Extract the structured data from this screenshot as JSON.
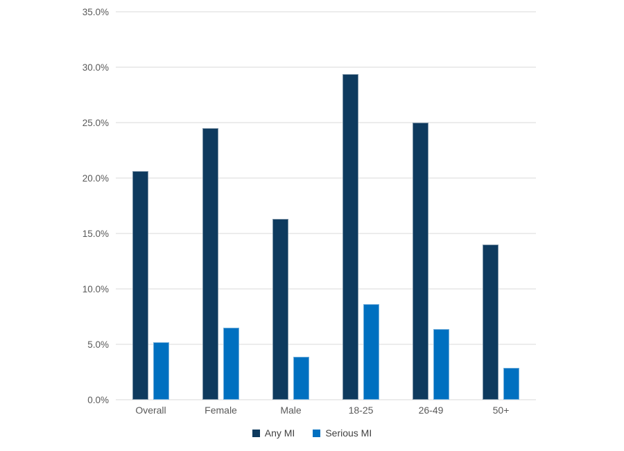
{
  "chart_data": {
    "type": "bar",
    "title": "",
    "xlabel": "",
    "ylabel": "",
    "categories": [
      "Overall",
      "Female",
      "Male",
      "18-25",
      "26-49",
      "50+"
    ],
    "series": [
      {
        "name": "Any MI",
        "color": "#0E3A5E",
        "values": [
          20.6,
          24.5,
          16.3,
          29.4,
          25.0,
          14.0
        ]
      },
      {
        "name": "Serious MI",
        "color": "#0070C0",
        "values": [
          5.2,
          6.5,
          3.9,
          8.6,
          6.4,
          2.9
        ]
      }
    ],
    "ylim": [
      0,
      35
    ],
    "ytick_step": 5,
    "ytick_labels": [
      "0.0%",
      "5.0%",
      "10.0%",
      "15.0%",
      "20.0%",
      "25.0%",
      "30.0%",
      "35.0%"
    ],
    "grid": true,
    "gridline_color": "#D9D9D9",
    "axis_text_color": "#595959",
    "legend_text_color": "#404040",
    "legend_position": "bottom",
    "background": "#FFFFFF"
  }
}
